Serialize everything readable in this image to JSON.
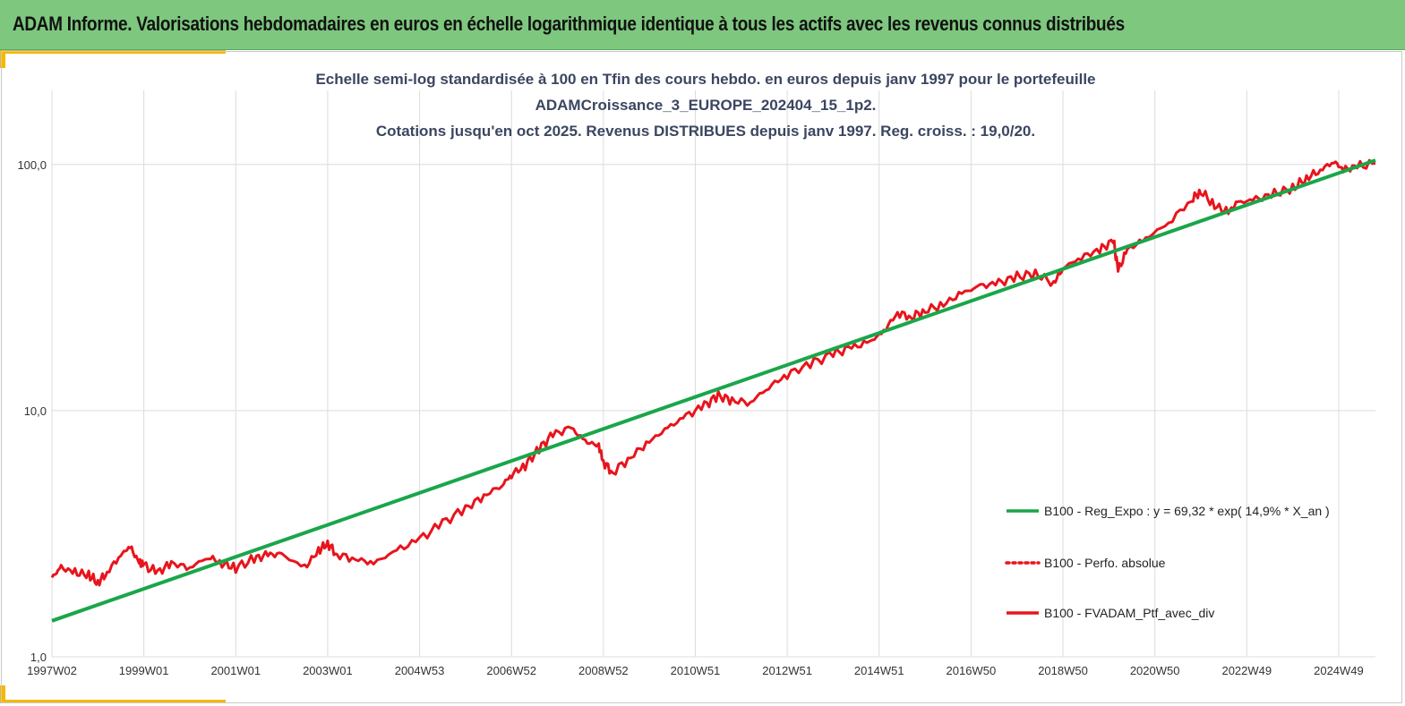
{
  "header": {
    "banner_title": "ADAM Informe. Valorisations hebdomadaires en euros en échelle logarithmique identique à tous les actifs avec les revenus connus distribués"
  },
  "colors": {
    "banner_bg": "#7ec77e",
    "accent": "#f5b800",
    "regression": "#1aa64a",
    "portfolio": "#e8141c",
    "title_text": "#3b4660"
  },
  "chart_data": {
    "type": "line",
    "title_lines": [
      "Echelle semi-log standardisée à 100 en Tfin des cours hebdo.  en euros depuis janv 1997 pour le portefeuille",
      "ADAMCroissance_3_EUROPE_202404_15_1p2.",
      "Cotations  jusqu'en oct 2025. Revenus DISTRIBUES depuis janv 1997. Reg. croiss.  : 19,0/20."
    ],
    "y_scale": "log",
    "ylim": [
      1,
      200
    ],
    "y_ticks": [
      {
        "value": 100,
        "label": "100,0"
      },
      {
        "value": 10,
        "label": "10,0"
      },
      {
        "value": 1,
        "label": "1,0"
      }
    ],
    "xlim": [
      1997.0,
      2025.8
    ],
    "x_ticks": [
      {
        "value": 1997.0,
        "label": "1997W02"
      },
      {
        "value": 1999.0,
        "label": "1999W01"
      },
      {
        "value": 2001.0,
        "label": "2001W01"
      },
      {
        "value": 2003.0,
        "label": "2003W01"
      },
      {
        "value": 2005.0,
        "label": "2004W53"
      },
      {
        "value": 2007.0,
        "label": "2006W52"
      },
      {
        "value": 2009.0,
        "label": "2008W52"
      },
      {
        "value": 2011.0,
        "label": "2010W51"
      },
      {
        "value": 2013.0,
        "label": "2012W51"
      },
      {
        "value": 2015.0,
        "label": "2014W51"
      },
      {
        "value": 2017.0,
        "label": "2016W50"
      },
      {
        "value": 2019.0,
        "label": "2018W50"
      },
      {
        "value": 2021.0,
        "label": "2020W50"
      },
      {
        "value": 2023.0,
        "label": "2022W49"
      },
      {
        "value": 2025.0,
        "label": "2024W49"
      }
    ],
    "grid": "vertical",
    "legend_position": "bottom-right",
    "series": [
      {
        "name": "B100 - Reg_Expo : y = 69,32 * exp( 14,9% *  X_an )",
        "style": "solid",
        "color": "#1aa64a",
        "x": [
          1997.0,
          2025.8
        ],
        "y": [
          1.4,
          104
        ]
      },
      {
        "name": "B100 - Perfo. absolue",
        "style": "dotted",
        "color": "#e8141c",
        "x": [],
        "y": []
      },
      {
        "name": "B100 - FVADAM_Ptf_avec_div",
        "style": "solid",
        "color": "#e8141c",
        "x": [
          1997.0,
          1997.2,
          1997.5,
          1997.8,
          1998.0,
          1998.2,
          1998.5,
          1998.7,
          1998.9,
          1999.0,
          1999.3,
          1999.6,
          2000.0,
          2000.4,
          2000.7,
          2001.0,
          2001.4,
          2001.7,
          2002.0,
          2002.5,
          2002.8,
          2003.0,
          2003.2,
          2003.6,
          2004.0,
          2004.5,
          2005.0,
          2005.5,
          2006.0,
          2006.4,
          2006.8,
          2007.0,
          2007.3,
          2007.6,
          2007.9,
          2008.3,
          2008.6,
          2008.9,
          2009.0,
          2009.2,
          2009.6,
          2010.0,
          2010.4,
          2010.8,
          2011.2,
          2011.5,
          2011.8,
          2012.2,
          2012.6,
          2013.0,
          2013.5,
          2014.0,
          2014.4,
          2014.8,
          2015.1,
          2015.4,
          2015.7,
          2016.0,
          2016.4,
          2016.8,
          2017.2,
          2017.6,
          2018.0,
          2018.4,
          2018.8,
          2019.0,
          2019.4,
          2019.8,
          2020.1,
          2020.2,
          2020.4,
          2020.8,
          2021.3,
          2021.8,
          2022.0,
          2022.3,
          2022.6,
          2022.8,
          2023.2,
          2023.6,
          2024.0,
          2024.3,
          2024.6,
          2024.9,
          2025.1,
          2025.4,
          2025.8
        ],
        "y": [
          2.1,
          2.3,
          2.2,
          2.15,
          2.0,
          2.2,
          2.6,
          2.8,
          2.4,
          2.35,
          2.2,
          2.4,
          2.3,
          2.55,
          2.4,
          2.3,
          2.5,
          2.6,
          2.6,
          2.3,
          2.7,
          2.9,
          2.6,
          2.5,
          2.4,
          2.7,
          3.0,
          3.5,
          4.0,
          4.5,
          5.0,
          5.5,
          6.0,
          7.0,
          8.0,
          8.5,
          7.5,
          7.2,
          6.2,
          5.6,
          6.5,
          7.5,
          8.5,
          9.5,
          10.5,
          11.5,
          11.0,
          10.8,
          12.5,
          14.0,
          15.5,
          17.0,
          18.0,
          19.0,
          21.0,
          25.0,
          24.0,
          25.5,
          27.0,
          30.0,
          32.0,
          33.0,
          35.0,
          36.0,
          33.0,
          38.0,
          42.0,
          45.0,
          49.0,
          37.0,
          45.0,
          50.0,
          58.0,
          72.0,
          78.0,
          68.0,
          64.0,
          70.0,
          72.0,
          76.0,
          80.0,
          88.0,
          95.0,
          103.0,
          95.0,
          98.0,
          101.0
        ]
      }
    ]
  }
}
